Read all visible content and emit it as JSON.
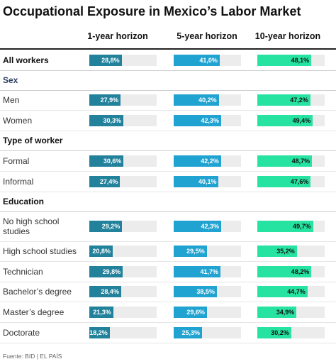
{
  "title": "Occupational Exposure in Mexico’s Labor Market",
  "source": "Fuente: BID | EL PAÍS",
  "chart_data": {
    "type": "bar",
    "title": "Occupational Exposure in Mexico’s Labor Market",
    "series": [
      {
        "name": "1-year horizon",
        "color": "#22819b"
      },
      {
        "name": "5-year horizon",
        "color": "#20a3d1"
      },
      {
        "name": "10-year horizon",
        "color": "#27e3a2"
      }
    ],
    "xlim": [
      0,
      60
    ],
    "rows": [
      {
        "label": "All workers",
        "style": "bold",
        "values": [
          28.8,
          41.0,
          48.1
        ],
        "value_labels": [
          "28,8%",
          "41,0%",
          "48,1%"
        ]
      },
      {
        "label": "Sex",
        "style": "section-blue"
      },
      {
        "label": "Men",
        "style": "normal",
        "values": [
          27.9,
          40.2,
          47.2
        ],
        "value_labels": [
          "27,9%",
          "40,2%",
          "47,2%"
        ]
      },
      {
        "label": "Women",
        "style": "normal",
        "values": [
          30.3,
          42.3,
          49.4
        ],
        "value_labels": [
          "30,3%",
          "42,3%",
          "49,4%"
        ]
      },
      {
        "label": "Type of worker",
        "style": "section"
      },
      {
        "label": "Formal",
        "style": "normal",
        "values": [
          30.6,
          42.2,
          48.7
        ],
        "value_labels": [
          "30,6%",
          "42,2%",
          "48,7%"
        ]
      },
      {
        "label": "Informal",
        "style": "normal",
        "values": [
          27.4,
          40.1,
          47.6
        ],
        "value_labels": [
          "27,4%",
          "40,1%",
          "47,6%"
        ]
      },
      {
        "label": "Education",
        "style": "section"
      },
      {
        "label": "No high school studies",
        "style": "normal",
        "values": [
          29.2,
          42.3,
          49.7
        ],
        "value_labels": [
          "29,2%",
          "42,3%",
          "49,7%"
        ]
      },
      {
        "label": "High school studies",
        "style": "normal",
        "values": [
          20.8,
          29.5,
          35.2
        ],
        "value_labels": [
          "20,8%",
          "29,5%",
          "35,2%"
        ]
      },
      {
        "label": "Technician",
        "style": "normal",
        "values": [
          29.8,
          41.7,
          48.2
        ],
        "value_labels": [
          "29,8%",
          "41,7%",
          "48,2%"
        ]
      },
      {
        "label": "Bachelor’s degree",
        "style": "normal",
        "values": [
          28.4,
          38.5,
          44.7
        ],
        "value_labels": [
          "28,4%",
          "38,5%",
          "44,7%"
        ]
      },
      {
        "label": "Master’s degree",
        "style": "normal",
        "values": [
          21.3,
          29.6,
          34.9
        ],
        "value_labels": [
          "21,3%",
          "29,6%",
          "34,9%"
        ]
      },
      {
        "label": "Doctorate",
        "style": "normal",
        "values": [
          18.2,
          25.3,
          30.2
        ],
        "value_labels": [
          "18,2%",
          "25,3%",
          "30,2%"
        ]
      }
    ]
  }
}
